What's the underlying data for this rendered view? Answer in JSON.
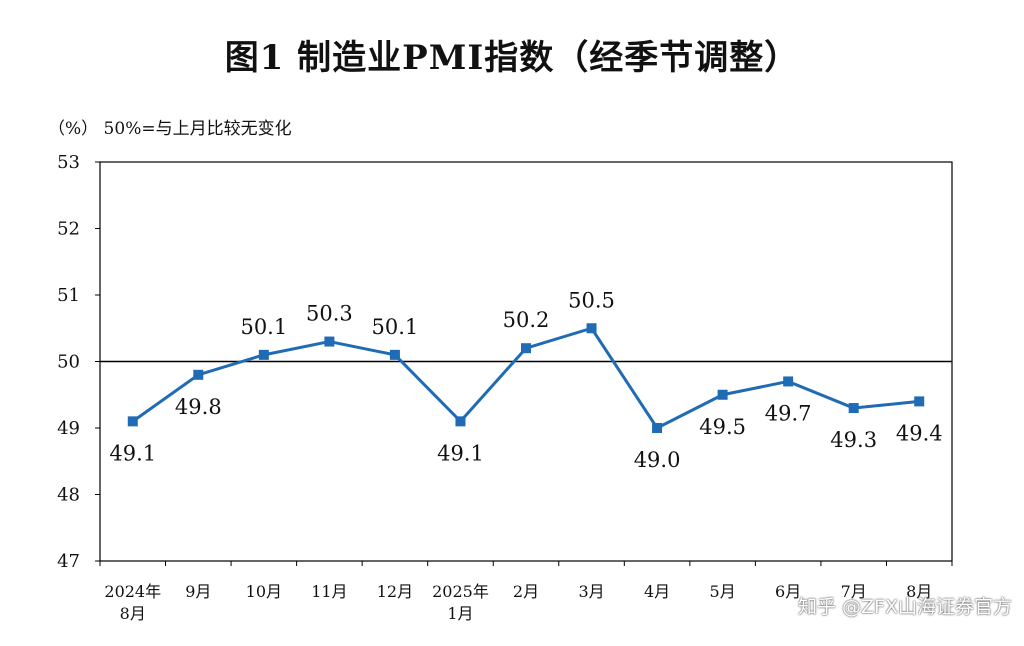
{
  "title": "图1  制造业PMI指数（经季节调整）",
  "unit_note": "（%）  50%=与上月比较无变化",
  "watermark": "知乎 @ZFX山海证券官方",
  "chart_data": {
    "type": "line",
    "categories": [
      [
        "2024年",
        "8月"
      ],
      [
        "9月"
      ],
      [
        "10月"
      ],
      [
        "11月"
      ],
      [
        "12月"
      ],
      [
        "2025年",
        "1月"
      ],
      [
        "2月"
      ],
      [
        "3月"
      ],
      [
        "4月"
      ],
      [
        "5月"
      ],
      [
        "6月"
      ],
      [
        "7月"
      ],
      [
        "8月"
      ]
    ],
    "series": [
      {
        "values": [
          49.1,
          49.8,
          50.1,
          50.3,
          50.1,
          49.1,
          50.2,
          50.5,
          49.0,
          49.5,
          49.7,
          49.3,
          49.4
        ]
      }
    ],
    "data_labels": [
      "49.1",
      "49.8",
      "50.1",
      "50.3",
      "50.1",
      "49.1",
      "50.2",
      "50.5",
      "49.0",
      "49.5",
      "49.7",
      "49.3",
      "49.4"
    ],
    "label_positions": [
      "below",
      "below",
      "above",
      "above",
      "above",
      "below",
      "above",
      "above",
      "below",
      "below",
      "below",
      "below",
      "below"
    ],
    "yticks": [
      "47",
      "48",
      "49",
      "50",
      "51",
      "52",
      "53"
    ],
    "ylim": [
      47,
      53
    ],
    "reference_line": 50,
    "line_color": "#1f6bb5",
    "grid": false
  }
}
